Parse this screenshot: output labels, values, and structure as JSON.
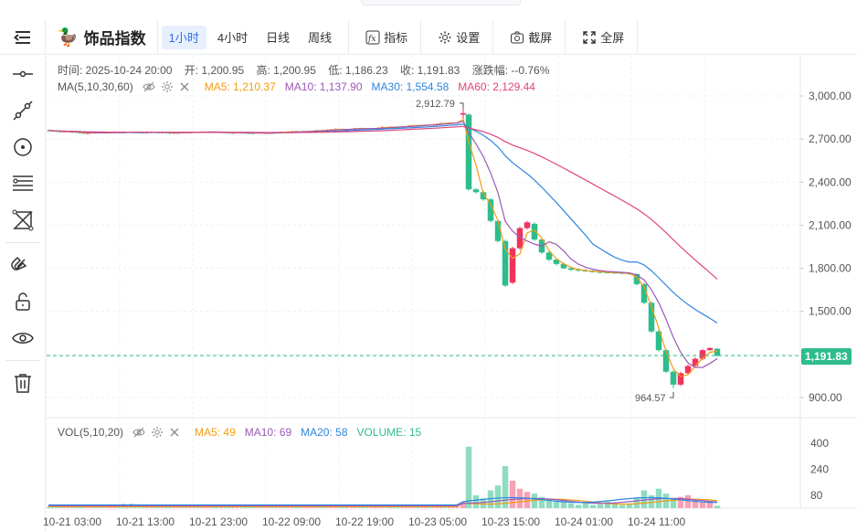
{
  "app": {
    "symbol_name": "饰品指数",
    "symbol_icon": "duck-icon"
  },
  "toolbar": {
    "intervals": [
      {
        "label": "1小时",
        "active": true
      },
      {
        "label": "4小时",
        "active": false
      },
      {
        "label": "日线",
        "active": false
      },
      {
        "label": "周线",
        "active": false
      }
    ],
    "indicator_label": "指标",
    "settings_label": "设置",
    "screenshot_label": "截屏",
    "fullscreen_label": "全屏"
  },
  "left_tools": [
    "horizontal-line-icon",
    "trend-line-icon",
    "circle-target-icon",
    "fib-lines-icon",
    "pattern-icon",
    "magnet-icon",
    "lock-open-icon",
    "eye-icon",
    "trash-icon"
  ],
  "info": {
    "time": "时间: 2025-10-24 20:00",
    "open": "开: 1,200.95",
    "high": "高: 1,200.95",
    "low": "低: 1,186.23",
    "close": "收: 1,191.83",
    "change": "涨跌幅: --0.76%"
  },
  "ma_legend": {
    "label": "MA(5,10,30,60)",
    "items": [
      {
        "text": "MA5: 1,210.37",
        "color": "#f39c12"
      },
      {
        "text": "MA10: 1,137.90",
        "color": "#9b59b6"
      },
      {
        "text": "MA30: 1,554.58",
        "color": "#2e86de"
      },
      {
        "text": "MA60: 2,129.44",
        "color": "#e0457b"
      }
    ]
  },
  "vol_legend": {
    "label": "VOL(5,10,20)",
    "items": [
      {
        "text": "MA5: 49",
        "color": "#f39c12"
      },
      {
        "text": "MA10: 69",
        "color": "#9b59b6"
      },
      {
        "text": "MA20: 58",
        "color": "#2e86de"
      },
      {
        "text": "VOLUME: 15",
        "color": "#2dbd8c"
      }
    ]
  },
  "price_axis": [
    "3,000.00",
    "2,700.00",
    "2,400.00",
    "2,100.00",
    "1,800.00",
    "1,500.00",
    "900.00"
  ],
  "vol_axis": [
    "400",
    "240",
    "80"
  ],
  "time_axis": [
    "10-21 03:00",
    "10-21 13:00",
    "10-21 23:00",
    "10-22 09:00",
    "10-22 19:00",
    "10-23 05:00",
    "10-23 15:00",
    "10-24 01:00",
    "10-24 11:00"
  ],
  "last_price": "1,191.83",
  "annotations": {
    "high": "2,912.79",
    "low": "964.57"
  },
  "colors": {
    "up": "#f0335e",
    "down": "#2dbd8c",
    "ma5": "#f39c12",
    "ma10": "#9b59b6",
    "ma30": "#2e86de",
    "ma60": "#e0457b"
  }
}
